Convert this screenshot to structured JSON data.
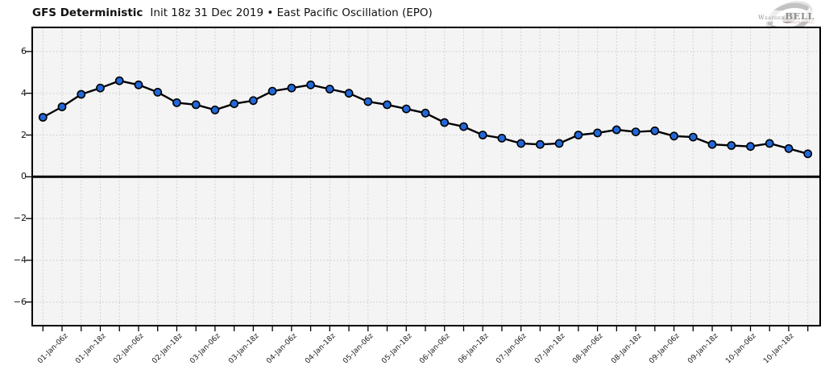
{
  "header": {
    "model": "GFS Deterministic",
    "subtitle": "Init 18z 31 Dec 2019 • East Pacific Oscillation (EPO)"
  },
  "logo": {
    "brand_weather": "Weather",
    "brand_bell": "BELL",
    "sub_text": "Analytics LLC"
  },
  "chart_data": {
    "type": "line",
    "title": "GFS Deterministic Init 18z 31 Dec 2019 • East Pacific Oscillation (EPO)",
    "series": [
      {
        "name": "EPO index",
        "marker_color": "#2268d8",
        "values": [
          2.85,
          3.35,
          3.95,
          4.25,
          4.6,
          4.4,
          4.05,
          3.55,
          3.45,
          3.2,
          3.5,
          3.65,
          4.1,
          4.25,
          4.4,
          4.2,
          4.0,
          3.6,
          3.45,
          3.25,
          3.05,
          2.6,
          2.4,
          2.0,
          1.85,
          1.6,
          1.55,
          1.6,
          2.0,
          2.1,
          2.25,
          2.15,
          2.2,
          1.95,
          1.9,
          1.55,
          1.5,
          1.45,
          1.6,
          1.35,
          1.1
        ]
      }
    ],
    "x_tick_interval_hours": 6,
    "x_tick_label_positions": [
      1,
      3,
      5,
      7,
      9,
      11,
      13,
      15,
      17,
      19,
      21,
      23,
      25,
      27,
      29,
      31,
      33,
      35,
      37,
      39
    ],
    "x_tick_labels": [
      "01-Jan-06z",
      "01-Jan-18z",
      "02-Jan-06z",
      "02-Jan-18z",
      "03-Jan-06z",
      "03-Jan-18z",
      "04-Jan-06z",
      "04-Jan-18z",
      "05-Jan-06z",
      "05-Jan-18z",
      "06-Jan-06z",
      "06-Jan-18z",
      "07-Jan-06z",
      "07-Jan-18z",
      "08-Jan-06z",
      "08-Jan-18z",
      "09-Jan-06z",
      "09-Jan-18z",
      "10-Jan-06z",
      "10-Jan-18z"
    ],
    "y_ticks": [
      6,
      4,
      2,
      0,
      -2,
      -4,
      -6
    ],
    "y_tick_labels": [
      "6",
      "4",
      "2",
      "0",
      "−2",
      "−4",
      "−6"
    ],
    "ylim": [
      -7.1,
      7.1
    ],
    "zero_line": true,
    "grid": "dotted",
    "line_color": "#000000",
    "marker_edge_color": "#000000",
    "plot_bg": "#f4f4f4"
  }
}
